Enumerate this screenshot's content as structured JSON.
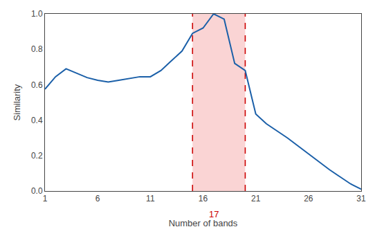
{
  "chart_data": {
    "type": "line",
    "xlabel": "Number of bands",
    "ylabel": "Similarity",
    "x": [
      1,
      2,
      3,
      4,
      5,
      6,
      7,
      8,
      9,
      10,
      11,
      12,
      13,
      14,
      15,
      16,
      17,
      18,
      19,
      20,
      21,
      22,
      23,
      24,
      25,
      26,
      27,
      28,
      29,
      30,
      31
    ],
    "values": [
      0.575,
      0.645,
      0.69,
      0.665,
      0.64,
      0.625,
      0.615,
      0.625,
      0.635,
      0.645,
      0.645,
      0.68,
      0.735,
      0.79,
      0.89,
      0.92,
      1.0,
      0.97,
      0.72,
      0.68,
      0.435,
      0.38,
      0.34,
      0.3,
      0.255,
      0.21,
      0.165,
      0.12,
      0.08,
      0.04,
      0.01
    ],
    "color": "#1a5fa8",
    "spans": [
      {
        "x0": 15,
        "x1": 20,
        "color": "#f4a0a0"
      }
    ],
    "vlines": [
      {
        "x": 15,
        "color": "#cc0000",
        "line_style": "dashed"
      },
      {
        "x": 20,
        "color": "#cc0000",
        "line_style": "dashed"
      }
    ],
    "annotations": [
      {
        "text": "17",
        "x": 17,
        "color": "#cc0000"
      }
    ],
    "xlim": [
      1,
      31
    ],
    "ylim": [
      0,
      1
    ],
    "xticks": [
      1,
      6,
      11,
      16,
      21,
      26,
      31
    ],
    "yticks": [
      {
        "value": 0,
        "label": "0.0"
      },
      0.2,
      0.4,
      0.6,
      0.8,
      {
        "value": 1.0,
        "label": "1.0"
      }
    ],
    "grid": false
  }
}
